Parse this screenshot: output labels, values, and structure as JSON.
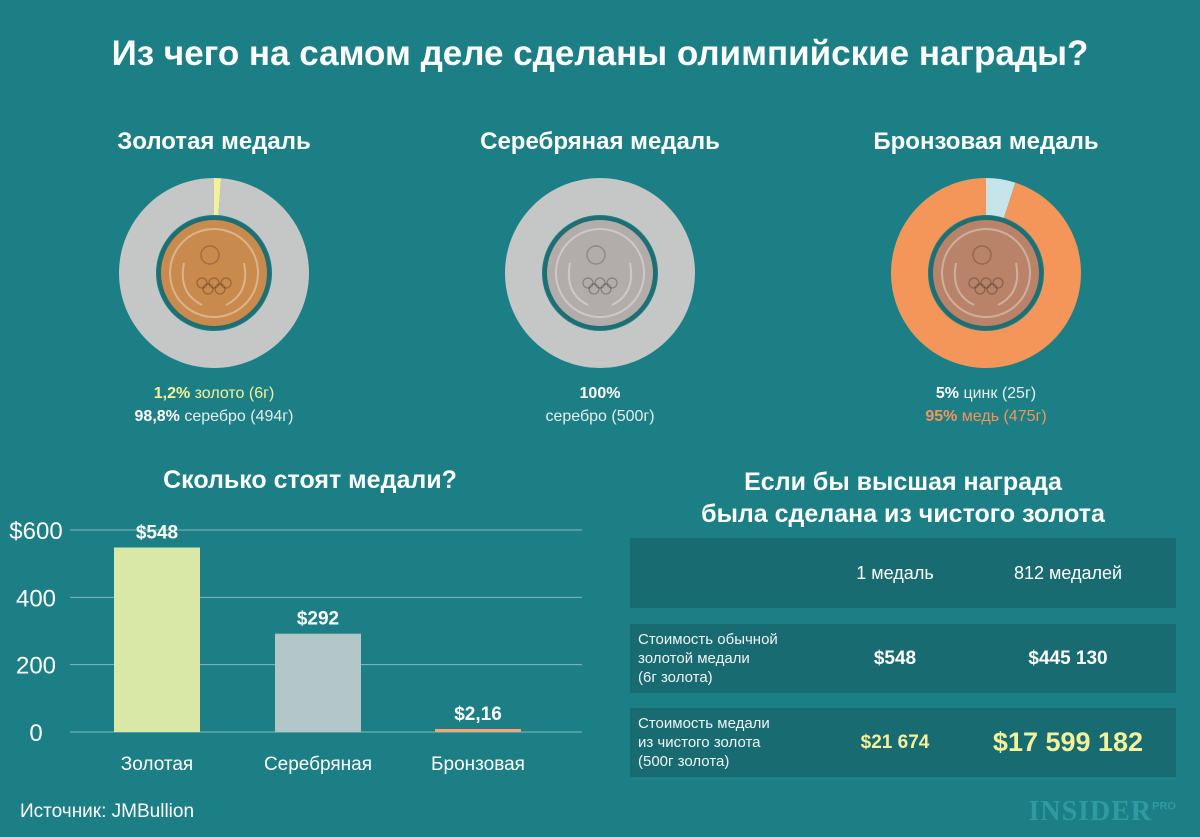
{
  "title": "Из чего на самом деле сделаны олимпийские награды?",
  "medals": [
    {
      "name": "Золотая медаль",
      "composition": [
        {
          "metal": "золото",
          "percent": 1.2,
          "color": "#f5f19a"
        },
        {
          "metal": "серебро",
          "percent": 98.8,
          "color": "#c5c7c6"
        }
      ],
      "line1_pct": "1,2%",
      "line1_text": " золото (6г)",
      "line2_pct": "98,8%",
      "line2_text": " серебро (494г)",
      "medal_color": "#c98a4e"
    },
    {
      "name": "Серебряная медаль",
      "composition": [
        {
          "metal": "серебро",
          "percent": 100,
          "color": "#c5c7c6"
        }
      ],
      "line1_pct": "100%",
      "line1_text": "",
      "line2_pct": "",
      "line2_text": "серебро (500г)",
      "medal_color": "#b2adaa"
    },
    {
      "name": "Бронзовая медаль",
      "composition": [
        {
          "metal": "цинк",
          "percent": 5,
          "color": "#c7e4ea"
        },
        {
          "metal": "медь",
          "percent": 95,
          "color": "#f4955a"
        }
      ],
      "line1_pct": "5%",
      "line1_text": " цинк (25г)",
      "line2_pct": "95%",
      "line2_text": " медь (475г)",
      "medal_color": "#b88368"
    }
  ],
  "cost_section": {
    "title": "Сколько стоят медали?"
  },
  "chart_data": {
    "type": "bar",
    "title": "Сколько стоят медали?",
    "categories": [
      "Золотая",
      "Серебряная",
      "Бронзовая"
    ],
    "values": [
      548,
      292,
      2.16
    ],
    "value_labels": [
      "$548",
      "$292",
      "$2,16"
    ],
    "bar_colors": [
      "#d9e8a6",
      "#b3c6c8",
      "#f2a67a"
    ],
    "yticks": [
      0,
      200,
      400,
      600
    ],
    "ytick_labels": [
      "0",
      "200",
      "400",
      "$600"
    ],
    "ylim": [
      0,
      600
    ],
    "grid": true
  },
  "pure_gold_section": {
    "title_line1": "Если бы высшая награда",
    "title_line2": "была сделана из чистого золота",
    "header": {
      "col1": "1 медаль",
      "col2": "812 медалей"
    },
    "rows": [
      {
        "label_lines": [
          "Стоимость обычной",
          "золотой медали",
          "(6г золота)"
        ],
        "v1": "$548",
        "v2": "$445 130"
      },
      {
        "label_lines": [
          "Стоимость медали",
          "из чистого золота",
          "(500г золота)"
        ],
        "v1": "$21 674",
        "v2": "$17 599 182"
      }
    ]
  },
  "source": "Источник: JMBullion",
  "logo": {
    "text": "INSIDER",
    "sup": "PRO"
  }
}
